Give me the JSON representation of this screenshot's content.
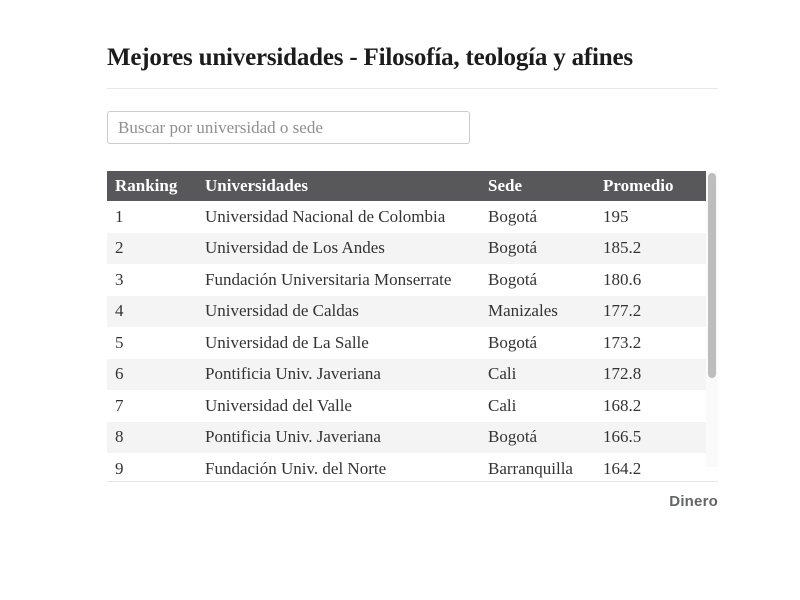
{
  "header": {
    "title": "Mejores universidades - Filosofía, teología y afines"
  },
  "search": {
    "placeholder": "Buscar por universidad o sede"
  },
  "table": {
    "columns": [
      "Ranking",
      "Universidades",
      "Sede",
      "Promedio"
    ],
    "rows": [
      {
        "ranking": "1",
        "universidad": "Universidad Nacional de Colombia",
        "sede": "Bogotá",
        "promedio": "195"
      },
      {
        "ranking": "2",
        "universidad": "Universidad de Los Andes",
        "sede": "Bogotá",
        "promedio": "185.2"
      },
      {
        "ranking": "3",
        "universidad": "Fundación Universitaria Monserrate",
        "sede": "Bogotá",
        "promedio": "180.6"
      },
      {
        "ranking": "4",
        "universidad": "Universidad de Caldas",
        "sede": "Manizales",
        "promedio": "177.2"
      },
      {
        "ranking": "5",
        "universidad": "Universidad de La Salle",
        "sede": "Bogotá",
        "promedio": "173.2"
      },
      {
        "ranking": "6",
        "universidad": "Pontificia Univ. Javeriana",
        "sede": "Cali",
        "promedio": "172.8"
      },
      {
        "ranking": "7",
        "universidad": "Universidad del Valle",
        "sede": "Cali",
        "promedio": "168.2"
      },
      {
        "ranking": "8",
        "universidad": "Pontificia Univ. Javeriana",
        "sede": "Bogotá",
        "promedio": "166.5"
      },
      {
        "ranking": "9",
        "universidad": "Fundación Univ. del Norte",
        "sede": "Barranquilla",
        "promedio": "164.2"
      }
    ]
  },
  "footer": {
    "brand": "Dinero"
  },
  "colors": {
    "table_header_bg": "#58585a",
    "table_header_text": "#ffffff",
    "zebra_row_bg": "#f4f4f4",
    "title_text": "#1c1c1c",
    "body_text": "#333333",
    "placeholder_text": "#8f8f8f",
    "divider": "#e7e7e7",
    "brand_text": "#636466",
    "scrollbar_thumb": "#bdbdbd"
  }
}
